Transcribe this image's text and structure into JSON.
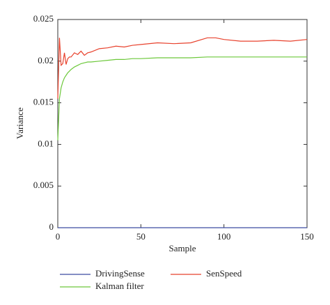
{
  "chart_data": {
    "type": "line",
    "xlabel": "Sample",
    "ylabel": "Variance",
    "x": [
      0,
      1,
      2,
      3,
      4,
      5,
      6,
      7,
      8,
      10,
      12,
      14,
      16,
      18,
      20,
      25,
      30,
      35,
      40,
      45,
      50,
      60,
      70,
      80,
      90,
      95,
      100,
      110,
      120,
      130,
      140,
      150
    ],
    "series": [
      {
        "name": "DrivingSense",
        "color": "#3a4aa0",
        "values": [
          0,
          0,
          0,
          0,
          0,
          0,
          0,
          0,
          0,
          0,
          0,
          0,
          0,
          0,
          0,
          0,
          0,
          0,
          0,
          0,
          0,
          0,
          0,
          0,
          0,
          0,
          0,
          0,
          0,
          0,
          0,
          0
        ]
      },
      {
        "name": "Kalman filter",
        "color": "#6cc83a",
        "values": [
          0.0105,
          0.0155,
          0.0168,
          0.0175,
          0.018,
          0.0183,
          0.0186,
          0.0188,
          0.019,
          0.0193,
          0.0195,
          0.0197,
          0.0198,
          0.0199,
          0.0199,
          0.02,
          0.0201,
          0.0202,
          0.0202,
          0.0203,
          0.0203,
          0.0204,
          0.0204,
          0.0204,
          0.0205,
          0.0205,
          0.0205,
          0.0205,
          0.0205,
          0.0205,
          0.0205,
          0.0205
        ]
      },
      {
        "name": "SenSpeed",
        "color": "#e8412c",
        "values": [
          0.0155,
          0.0228,
          0.0195,
          0.0197,
          0.021,
          0.0196,
          0.0203,
          0.0205,
          0.0205,
          0.021,
          0.0208,
          0.0212,
          0.0207,
          0.021,
          0.0211,
          0.0215,
          0.0216,
          0.0218,
          0.0217,
          0.0219,
          0.022,
          0.0222,
          0.0221,
          0.0222,
          0.0228,
          0.0228,
          0.0226,
          0.0224,
          0.0224,
          0.0225,
          0.0224,
          0.0226
        ]
      }
    ],
    "xlim": [
      0,
      150
    ],
    "xticks": [
      0,
      50,
      100,
      150
    ],
    "ylim": [
      0,
      0.025
    ],
    "yticks": [
      0,
      0.005,
      0.01,
      0.015,
      0.02,
      0.025
    ]
  }
}
